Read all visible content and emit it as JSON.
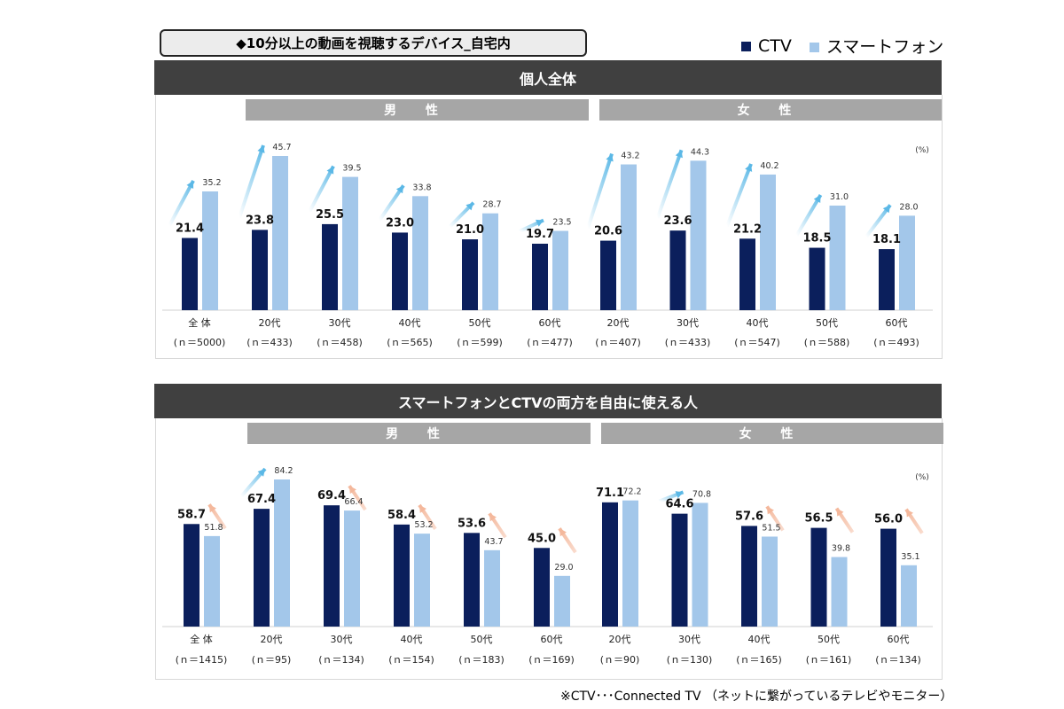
{
  "title": "◆10分以上の動画を視聴するデバイス_自宅内",
  "legend": {
    "ctv": "CTV",
    "phone": "スマートフォン"
  },
  "colors": {
    "ctv": "#0b1f5c",
    "phone": "#a3c7ea",
    "up_arrow": "#5bb8e6",
    "down_arrow": "#f4b89c",
    "header": "#404040",
    "subheader": "#a6a6a6"
  },
  "footnote": "※CTV･･･Connected TV （ネットに繋がっているテレビやモニター）",
  "chart_data": [
    {
      "type": "bar",
      "title": "個人全体",
      "groups": {
        "male": "男 性",
        "female": "女 性"
      },
      "unit": "(%)",
      "categories": [
        "全 体",
        "20代",
        "30代",
        "40代",
        "50代",
        "60代",
        "20代",
        "30代",
        "40代",
        "50代",
        "60代"
      ],
      "n": [
        "(ｎ＝5000)",
        "(ｎ＝433)",
        "(ｎ＝458)",
        "(ｎ＝565)",
        "(ｎ＝599)",
        "(ｎ＝477)",
        "(ｎ＝407)",
        "(ｎ＝433)",
        "(ｎ＝547)",
        "(ｎ＝588)",
        "(ｎ＝493)"
      ],
      "series": [
        {
          "name": "CTV",
          "values": [
            21.4,
            23.8,
            25.5,
            23.0,
            21.0,
            19.7,
            20.6,
            23.6,
            21.2,
            18.5,
            18.1
          ]
        },
        {
          "name": "スマートフォン",
          "values": [
            35.2,
            45.7,
            39.5,
            33.8,
            28.7,
            23.5,
            43.2,
            44.3,
            40.2,
            31.0,
            28.0
          ]
        }
      ],
      "arrows": [
        "up",
        "up",
        "up",
        "up",
        "up",
        "up",
        "up",
        "up",
        "up",
        "up",
        "up"
      ],
      "ylim": [
        0,
        45.7
      ]
    },
    {
      "type": "bar",
      "title": "スマートフォンとCTVの両方を自由に使える人",
      "groups": {
        "male": "男 性",
        "female": "女 性"
      },
      "unit": "(%)",
      "categories": [
        "全 体",
        "20代",
        "30代",
        "40代",
        "50代",
        "60代",
        "20代",
        "30代",
        "40代",
        "50代",
        "60代"
      ],
      "n": [
        "(ｎ＝1415)",
        "(ｎ＝95)",
        "(ｎ＝134)",
        "(ｎ＝154)",
        "(ｎ＝183)",
        "(ｎ＝169)",
        "(ｎ＝90)",
        "(ｎ＝130)",
        "(ｎ＝165)",
        "(ｎ＝161)",
        "(ｎ＝134)"
      ],
      "series": [
        {
          "name": "CTV",
          "values": [
            58.7,
            67.4,
            69.4,
            58.4,
            53.6,
            45.0,
            71.1,
            64.6,
            57.6,
            56.5,
            56.0
          ]
        },
        {
          "name": "スマートフォン",
          "values": [
            51.8,
            84.2,
            66.4,
            53.2,
            43.7,
            29.0,
            72.2,
            70.8,
            51.5,
            39.8,
            35.1
          ]
        }
      ],
      "arrows": [
        "down",
        "up",
        "down",
        "down",
        "down",
        "down",
        "none",
        "up",
        "down",
        "down",
        "down"
      ],
      "ylim": [
        0,
        84.2
      ]
    }
  ]
}
